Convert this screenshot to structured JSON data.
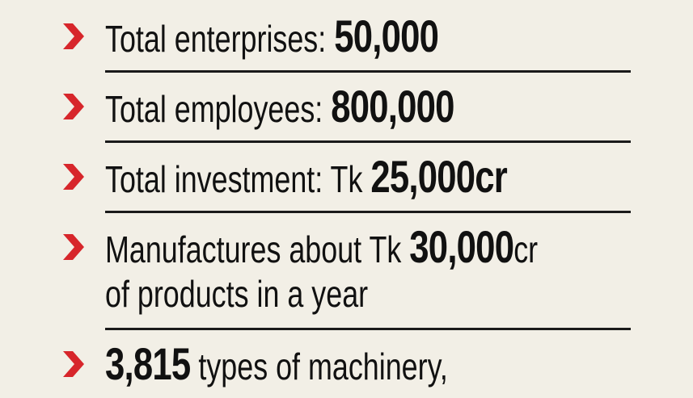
{
  "items": [
    {
      "lines": [
        [
          {
            "text": "Total enterprises:",
            "bold": false
          },
          {
            "text": "50,000",
            "bold": true
          }
        ]
      ]
    },
    {
      "lines": [
        [
          {
            "text": "Total employees:",
            "bold": false
          },
          {
            "text": "800,000",
            "bold": true
          }
        ]
      ]
    },
    {
      "lines": [
        [
          {
            "text": "Total investment: Tk",
            "bold": false
          },
          {
            "text": "25,000cr",
            "bold": true
          }
        ]
      ]
    },
    {
      "lines": [
        [
          {
            "text": "Manufactures about Tk",
            "bold": false
          },
          {
            "text": "30,000",
            "bold": true,
            "unit": "cr"
          }
        ],
        [
          {
            "text": "of products in a year",
            "bold": false
          }
        ]
      ]
    },
    {
      "lines": [
        [
          {
            "text": "3,815",
            "bold": true
          },
          {
            "text": "types of machinery,",
            "bold": false
          }
        ]
      ]
    }
  ]
}
